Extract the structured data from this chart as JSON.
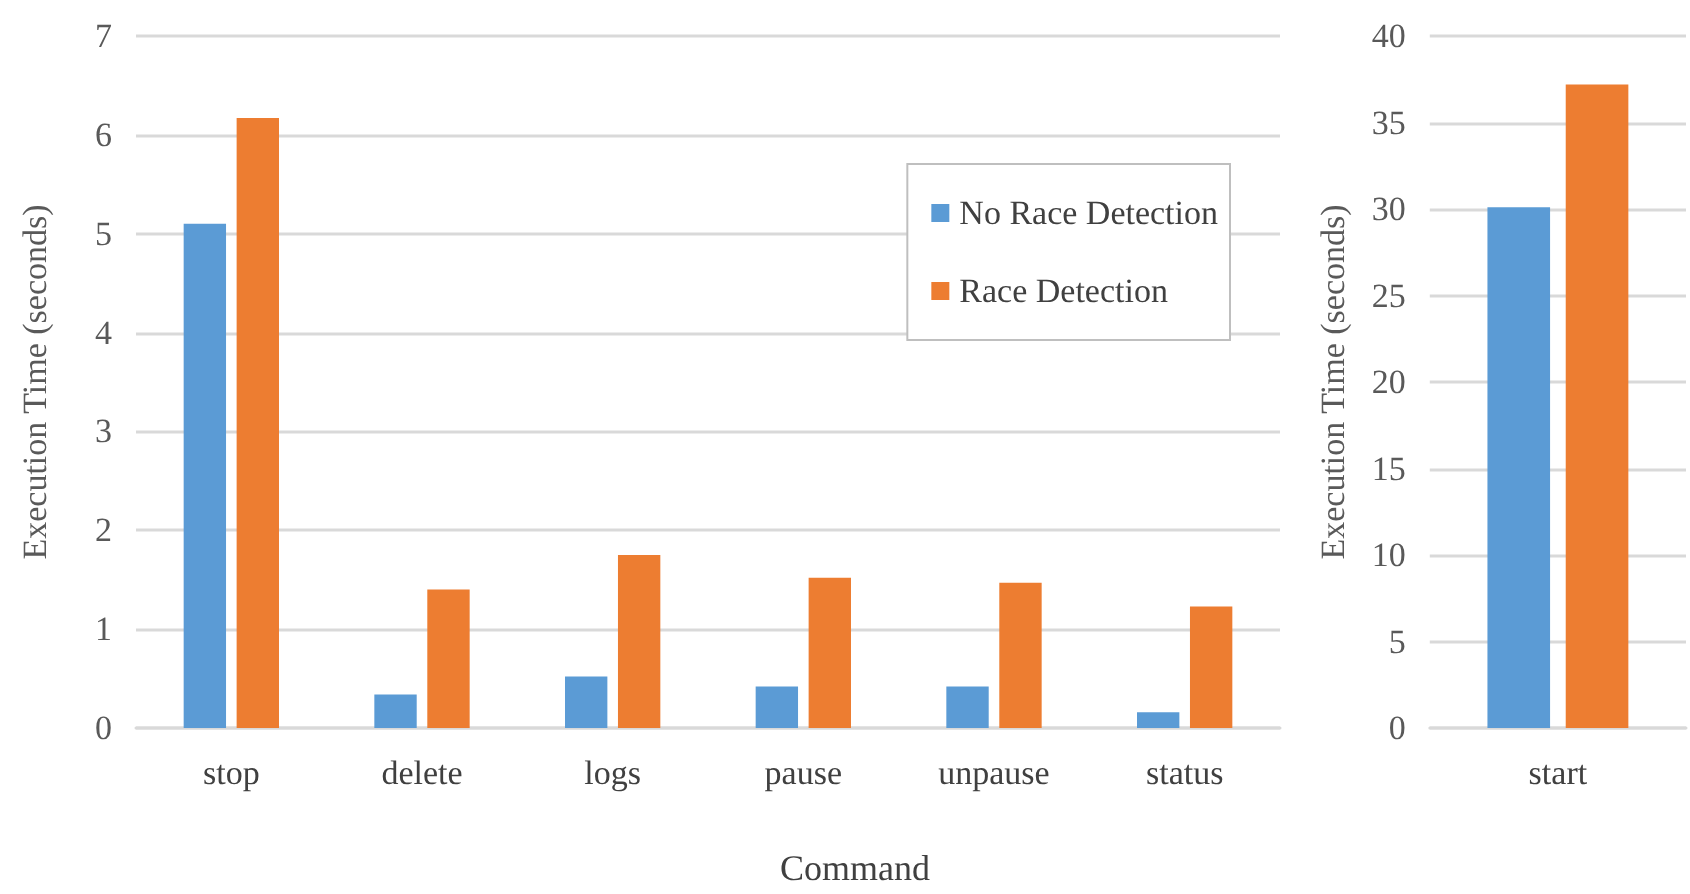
{
  "chart_data": [
    {
      "type": "bar",
      "xlabel": "Command",
      "ylabel": "Execution Time (seconds)",
      "categories": [
        "stop",
        "delete",
        "logs",
        "pause",
        "unpause",
        "status"
      ],
      "series": [
        {
          "name": "No Race Detection",
          "color": "#5b9bd5",
          "values": [
            5.1,
            0.34,
            0.52,
            0.42,
            0.42,
            0.16
          ]
        },
        {
          "name": "Race Detection",
          "color": "#ed7d31",
          "values": [
            6.17,
            1.4,
            1.75,
            1.52,
            1.47,
            1.23
          ]
        }
      ],
      "ylim": [
        0,
        7
      ],
      "yticks": [
        0,
        1,
        2,
        3,
        4,
        5,
        6,
        7
      ],
      "grid": "y",
      "legend": "top right"
    },
    {
      "type": "bar",
      "ylabel": "Execution Time (seconds)",
      "categories": [
        "start"
      ],
      "series": [
        {
          "color": "#5b9bd5",
          "values": [
            30.1
          ]
        },
        {
          "color": "#ed7d31",
          "values": [
            37.2
          ]
        }
      ],
      "ylim": [
        0,
        40
      ],
      "yticks": [
        0,
        5,
        10,
        15,
        20,
        25,
        30,
        35,
        40
      ],
      "grid": "y"
    }
  ]
}
